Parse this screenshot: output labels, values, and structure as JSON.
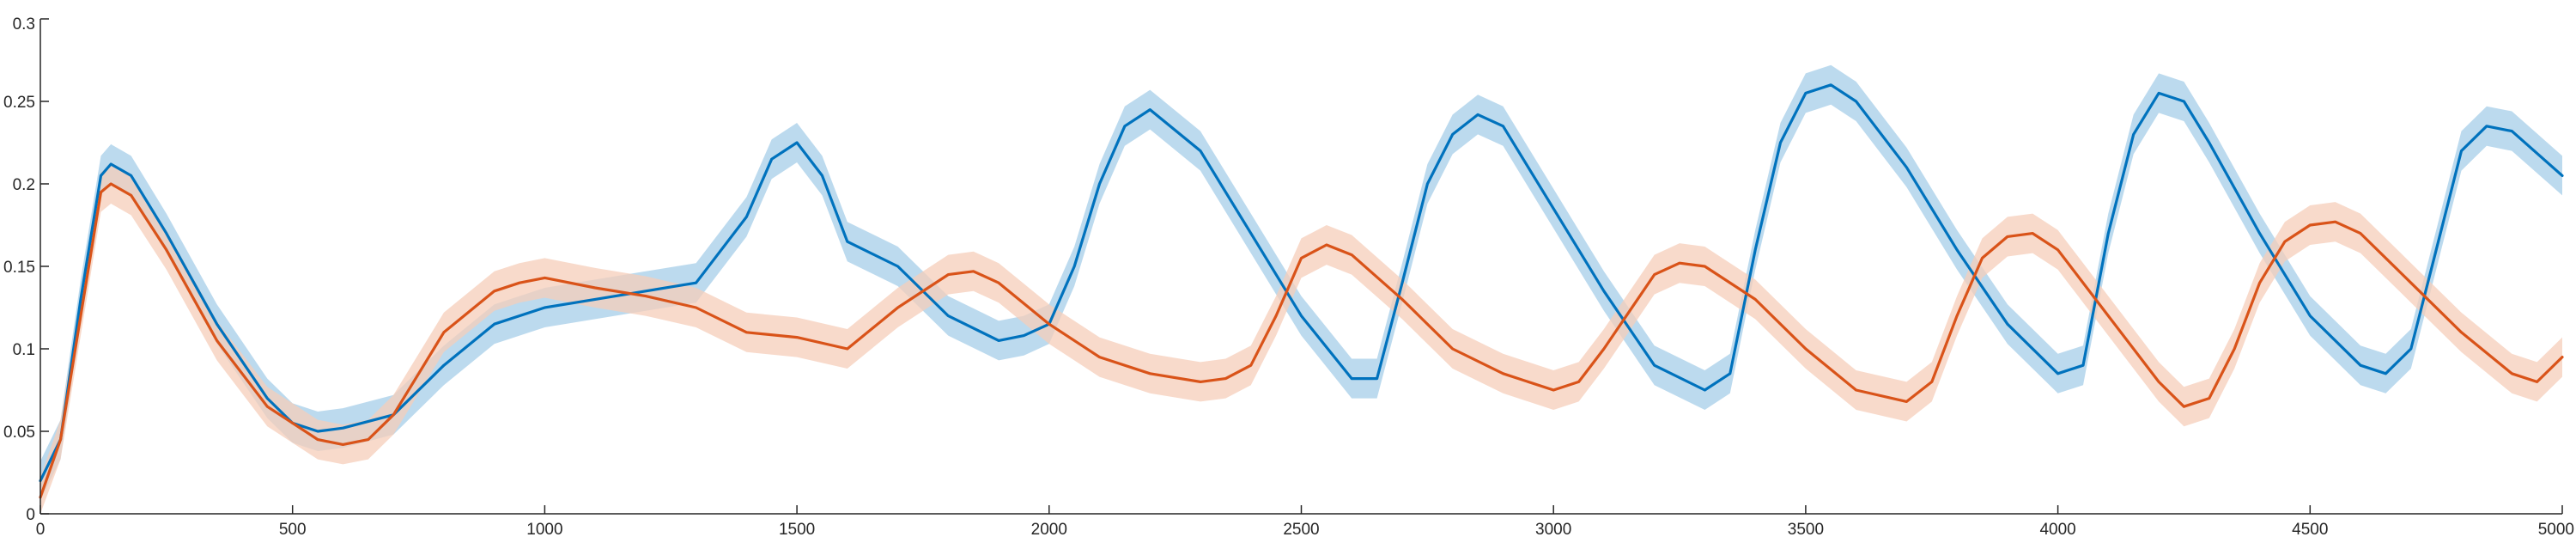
{
  "chart_data": {
    "type": "line",
    "title": "",
    "xlabel": "",
    "ylabel": "",
    "xlim": [
      0,
      5000
    ],
    "ylim": [
      0,
      0.3
    ],
    "xticks": [
      0,
      500,
      1000,
      1500,
      2000,
      2500,
      3000,
      3500,
      4000,
      4500,
      5000
    ],
    "xtick_labels": [
      "0",
      "500",
      "1000",
      "1500",
      "2000",
      "2500",
      "3000",
      "3500",
      "4000",
      "4500",
      "5000"
    ],
    "yticks": [
      0,
      0.05,
      0.1,
      0.15,
      0.2,
      0.25,
      0.3
    ],
    "ytick_labels": [
      "0",
      "0.05",
      "0.1",
      "0.15",
      "0.2",
      "0.25",
      "0.3"
    ],
    "grid": false,
    "legend": "none",
    "band_half_width": 0.012,
    "series": [
      {
        "color": "#0072BD",
        "band_color": "#A6CEE8",
        "x": [
          0,
          40,
          80,
          120,
          140,
          180,
          250,
          350,
          450,
          500,
          550,
          600,
          700,
          800,
          900,
          1000,
          1100,
          1200,
          1300,
          1400,
          1450,
          1500,
          1550,
          1600,
          1700,
          1800,
          1900,
          1950,
          2000,
          2050,
          2100,
          2150,
          2200,
          2300,
          2400,
          2500,
          2600,
          2650,
          2700,
          2750,
          2800,
          2850,
          2900,
          3000,
          3100,
          3200,
          3300,
          3350,
          3400,
          3450,
          3500,
          3550,
          3600,
          3700,
          3800,
          3900,
          4000,
          4050,
          4100,
          4150,
          4200,
          4250,
          4300,
          4400,
          4500,
          4600,
          4650,
          4700,
          4750,
          4800,
          4850,
          4900,
          5000
        ],
        "y": [
          0.02,
          0.045,
          0.13,
          0.205,
          0.212,
          0.205,
          0.17,
          0.115,
          0.07,
          0.055,
          0.05,
          0.052,
          0.06,
          0.09,
          0.115,
          0.125,
          0.13,
          0.135,
          0.14,
          0.18,
          0.215,
          0.225,
          0.205,
          0.165,
          0.15,
          0.12,
          0.105,
          0.108,
          0.115,
          0.15,
          0.2,
          0.235,
          0.245,
          0.22,
          0.17,
          0.12,
          0.082,
          0.082,
          0.14,
          0.2,
          0.23,
          0.242,
          0.235,
          0.185,
          0.135,
          0.09,
          0.075,
          0.085,
          0.16,
          0.225,
          0.255,
          0.26,
          0.25,
          0.21,
          0.16,
          0.115,
          0.085,
          0.09,
          0.17,
          0.23,
          0.255,
          0.25,
          0.225,
          0.17,
          0.12,
          0.09,
          0.085,
          0.1,
          0.16,
          0.22,
          0.235,
          0.232,
          0.205
        ]
      },
      {
        "color": "#D95319",
        "band_color": "#F6CDB9",
        "x": [
          0,
          40,
          80,
          120,
          140,
          180,
          250,
          350,
          450,
          550,
          600,
          650,
          700,
          750,
          800,
          900,
          950,
          1000,
          1100,
          1200,
          1300,
          1400,
          1500,
          1600,
          1700,
          1800,
          1850,
          1900,
          2000,
          2100,
          2200,
          2300,
          2350,
          2400,
          2450,
          2500,
          2550,
          2600,
          2700,
          2800,
          2900,
          3000,
          3050,
          3100,
          3200,
          3250,
          3300,
          3400,
          3500,
          3600,
          3700,
          3750,
          3800,
          3850,
          3900,
          3950,
          4000,
          4100,
          4200,
          4250,
          4300,
          4350,
          4400,
          4450,
          4500,
          4550,
          4600,
          4700,
          4800,
          4900,
          4950,
          5000
        ],
        "y": [
          0.01,
          0.045,
          0.12,
          0.195,
          0.2,
          0.193,
          0.16,
          0.105,
          0.065,
          0.045,
          0.042,
          0.045,
          0.06,
          0.085,
          0.11,
          0.135,
          0.14,
          0.143,
          0.137,
          0.132,
          0.125,
          0.11,
          0.107,
          0.1,
          0.125,
          0.145,
          0.147,
          0.14,
          0.115,
          0.095,
          0.085,
          0.08,
          0.082,
          0.09,
          0.12,
          0.155,
          0.163,
          0.157,
          0.13,
          0.1,
          0.085,
          0.075,
          0.08,
          0.1,
          0.145,
          0.152,
          0.15,
          0.13,
          0.1,
          0.075,
          0.068,
          0.08,
          0.12,
          0.155,
          0.168,
          0.17,
          0.16,
          0.12,
          0.08,
          0.065,
          0.07,
          0.1,
          0.14,
          0.165,
          0.175,
          0.177,
          0.17,
          0.14,
          0.11,
          0.085,
          0.08,
          0.095
        ]
      }
    ]
  }
}
